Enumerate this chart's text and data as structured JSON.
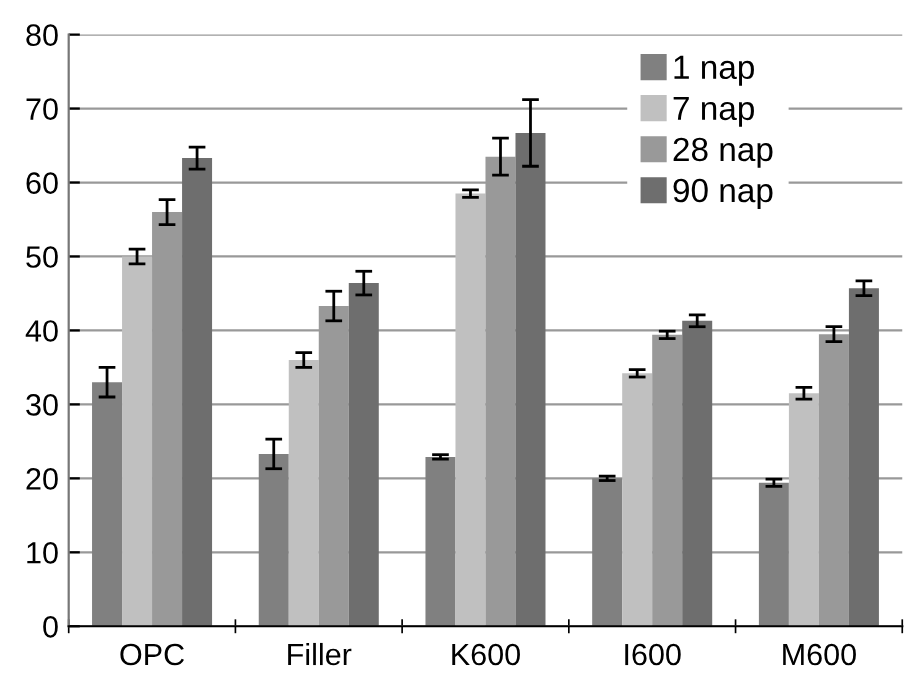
{
  "chart_data": {
    "type": "bar",
    "categories": [
      "OPC",
      "Filler",
      "K600",
      "I600",
      "M600"
    ],
    "series": [
      {
        "name": "1 nap",
        "color": "#808080",
        "values": [
          33,
          23.3,
          22.9,
          20,
          19.4
        ],
        "errors": [
          2,
          2,
          0.3,
          0.3,
          0.5
        ]
      },
      {
        "name": "7 nap",
        "color": "#c0c0c0",
        "values": [
          50,
          36,
          58.5,
          34.2,
          31.5
        ],
        "errors": [
          1,
          1,
          0.5,
          0.5,
          0.8
        ]
      },
      {
        "name": "28 nap",
        "color": "#999999",
        "values": [
          56,
          43.3,
          63.5,
          39.4,
          39.5
        ],
        "errors": [
          1.7,
          2,
          2.5,
          0.5,
          1
        ]
      },
      {
        "name": "90 nap",
        "color": "#6e6e6e",
        "values": [
          63.3,
          46.4,
          66.7,
          41.3,
          45.7
        ],
        "errors": [
          1.5,
          1.6,
          4.5,
          0.8,
          1
        ]
      }
    ],
    "ylim": [
      0,
      80
    ],
    "yticks": [
      0,
      10,
      20,
      30,
      40,
      50,
      60,
      70,
      80
    ],
    "grid": "y",
    "legend": "top right"
  }
}
